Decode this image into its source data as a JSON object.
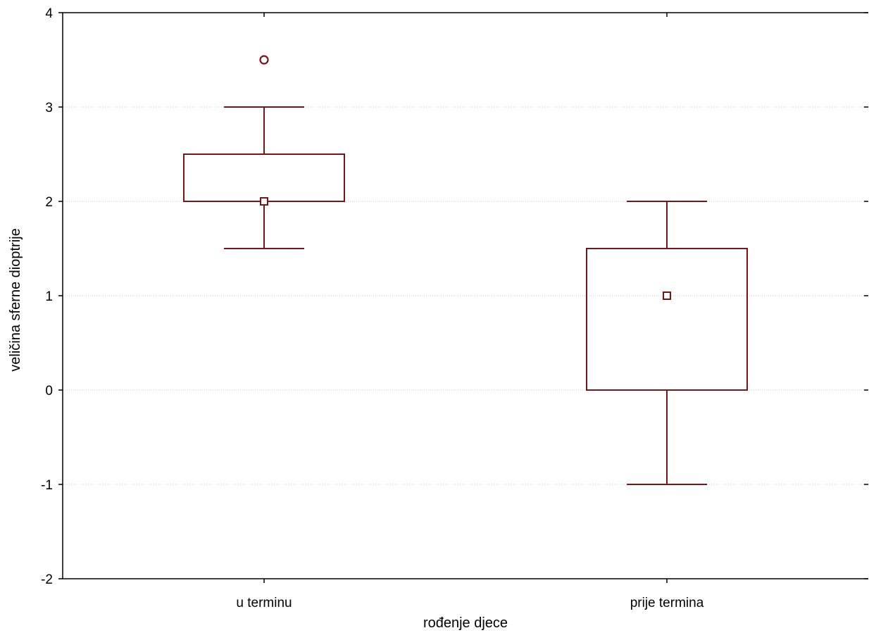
{
  "chart_data": {
    "type": "box",
    "xlabel": "rođenje djece",
    "ylabel": "veličina sferne dioptrije",
    "ylim": [
      -2,
      4
    ],
    "yticks": [
      -2,
      -1,
      0,
      1,
      2,
      3,
      4
    ],
    "ytick_labels": [
      "-2",
      "-1",
      "0",
      "1",
      "2",
      "3",
      "4"
    ],
    "grid": "horizontal dotted",
    "categories": [
      "u terminu",
      "prije termina"
    ],
    "boxes": [
      {
        "category": "u terminu",
        "whisker_low": 1.5,
        "q1": 2,
        "median": 2,
        "q3": 2.5,
        "whisker_high": 3,
        "outliers": [
          3.5
        ]
      },
      {
        "category": "prije termina",
        "whisker_low": -1,
        "q1": 0,
        "median": 1,
        "q3": 1.5,
        "whisker_high": 2,
        "outliers": []
      }
    ],
    "colors": {
      "box": "#7b1416",
      "grid": "#c8c8c8",
      "axis": "#000000"
    }
  }
}
